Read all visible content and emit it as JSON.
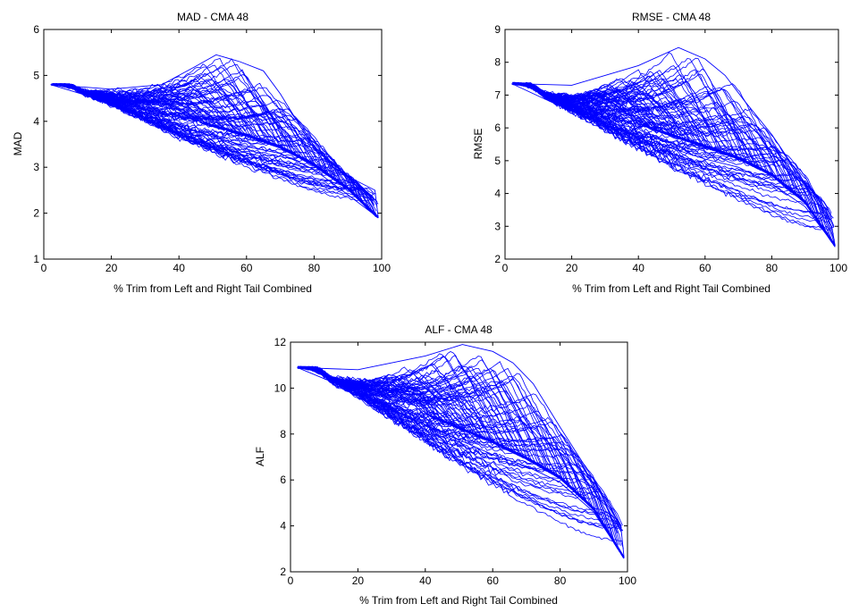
{
  "chart_data": [
    {
      "type": "line",
      "title": "MAD - CMA 48",
      "xlabel": "% Trim from Left and Right Tail Combined",
      "ylabel": "MAD",
      "xlim": [
        0,
        100
      ],
      "ylim": [
        1,
        6
      ],
      "xticks": [
        0,
        20,
        40,
        60,
        80,
        100
      ],
      "yticks": [
        1,
        2,
        3,
        4,
        5,
        6
      ],
      "grid": false,
      "line_color": "#0000ff",
      "start": 4.8,
      "trend": [
        [
          2,
          4.8
        ],
        [
          20,
          4.6
        ],
        [
          40,
          4.2
        ],
        [
          60,
          3.8
        ],
        [
          70,
          3.5
        ],
        [
          80,
          3.1
        ],
        [
          90,
          2.6
        ],
        [
          99,
          1.9
        ]
      ],
      "lower": [
        [
          2,
          4.8
        ],
        [
          20,
          4.4
        ],
        [
          40,
          3.9
        ],
        [
          60,
          3.45
        ],
        [
          70,
          3.3
        ],
        [
          80,
          2.95
        ],
        [
          90,
          2.4
        ],
        [
          99,
          1.9
        ]
      ],
      "peaks": [
        [
          30,
          4.4
        ],
        [
          40,
          4.9
        ],
        [
          51,
          5.45
        ],
        [
          58,
          5.3
        ],
        [
          64,
          4.9
        ],
        [
          70,
          4.5
        ],
        [
          76,
          3.9
        ],
        [
          82,
          3.3
        ],
        [
          90,
          2.7
        ],
        [
          97,
          2.5
        ]
      ],
      "upper": [
        [
          2,
          4.8
        ],
        [
          20,
          4.7
        ],
        [
          35,
          4.8
        ],
        [
          45,
          5.2
        ],
        [
          51,
          5.45
        ],
        [
          58,
          5.3
        ],
        [
          65,
          5.1
        ],
        [
          70,
          4.6
        ],
        [
          80,
          3.4
        ],
        [
          90,
          2.8
        ],
        [
          98,
          2.5
        ],
        [
          99,
          1.9
        ]
      ]
    },
    {
      "type": "line",
      "title": "RMSE - CMA 48",
      "xlabel": "% Trim from Left and Right Tail Combined",
      "ylabel": "RMSE",
      "xlim": [
        0,
        100
      ],
      "ylim": [
        2,
        9
      ],
      "xticks": [
        0,
        20,
        40,
        60,
        80,
        100
      ],
      "yticks": [
        2,
        3,
        4,
        5,
        6,
        7,
        8,
        9
      ],
      "grid": false,
      "line_color": "#0000ff",
      "start": 7.35,
      "trend": [
        [
          2,
          7.35
        ],
        [
          20,
          6.9
        ],
        [
          40,
          6.3
        ],
        [
          60,
          5.6
        ],
        [
          70,
          5.2
        ],
        [
          80,
          4.7
        ],
        [
          90,
          3.8
        ],
        [
          99,
          2.4
        ]
      ],
      "lower": [
        [
          2,
          7.35
        ],
        [
          20,
          6.5
        ],
        [
          40,
          5.7
        ],
        [
          60,
          5.05
        ],
        [
          70,
          4.8
        ],
        [
          80,
          4.3
        ],
        [
          90,
          3.6
        ],
        [
          99,
          2.4
        ]
      ],
      "peaks": [
        [
          25,
          7.1
        ],
        [
          40,
          7.8
        ],
        [
          52,
          8.45
        ],
        [
          60,
          8.1
        ],
        [
          66,
          7.7
        ],
        [
          72,
          7.0
        ],
        [
          78,
          6.2
        ],
        [
          84,
          5.2
        ],
        [
          92,
          4.0
        ],
        [
          98,
          3.2
        ]
      ],
      "upper": [
        [
          2,
          7.35
        ],
        [
          20,
          7.3
        ],
        [
          40,
          7.9
        ],
        [
          52,
          8.45
        ],
        [
          60,
          8.1
        ],
        [
          66,
          7.6
        ],
        [
          72,
          6.8
        ],
        [
          80,
          5.8
        ],
        [
          90,
          4.3
        ],
        [
          98,
          3.0
        ],
        [
          99,
          2.4
        ]
      ]
    },
    {
      "type": "line",
      "title": "ALF - CMA 48",
      "xlabel": "% Trim from Left and Right Tail Combined",
      "ylabel": "ALF",
      "xlim": [
        0,
        100
      ],
      "ylim": [
        2,
        12
      ],
      "xticks": [
        0,
        20,
        40,
        60,
        80,
        100
      ],
      "yticks": [
        2,
        4,
        6,
        8,
        10,
        12
      ],
      "grid": false,
      "line_color": "#0000ff",
      "start": 10.9,
      "trend": [
        [
          2,
          10.9
        ],
        [
          20,
          10.2
        ],
        [
          40,
          9.1
        ],
        [
          60,
          7.9
        ],
        [
          70,
          7.1
        ],
        [
          80,
          6.2
        ],
        [
          90,
          4.8
        ],
        [
          99,
          2.6
        ]
      ],
      "lower": [
        [
          2,
          10.9
        ],
        [
          20,
          9.8
        ],
        [
          40,
          8.4
        ],
        [
          60,
          7.1
        ],
        [
          70,
          6.6
        ],
        [
          80,
          5.9
        ],
        [
          90,
          4.6
        ],
        [
          99,
          2.6
        ]
      ],
      "peaks": [
        [
          25,
          10.5
        ],
        [
          40,
          11.3
        ],
        [
          51,
          11.9
        ],
        [
          58,
          11.6
        ],
        [
          66,
          11.0
        ],
        [
          72,
          10.0
        ],
        [
          80,
          8.0
        ],
        [
          88,
          6.4
        ],
        [
          95,
          4.7
        ],
        [
          98,
          4.0
        ]
      ],
      "upper": [
        [
          2,
          10.9
        ],
        [
          20,
          10.8
        ],
        [
          40,
          11.4
        ],
        [
          51,
          11.9
        ],
        [
          60,
          11.6
        ],
        [
          66,
          11.1
        ],
        [
          72,
          10.2
        ],
        [
          80,
          8.3
        ],
        [
          90,
          6.0
        ],
        [
          98,
          4.0
        ],
        [
          99,
          2.6
        ]
      ]
    }
  ]
}
